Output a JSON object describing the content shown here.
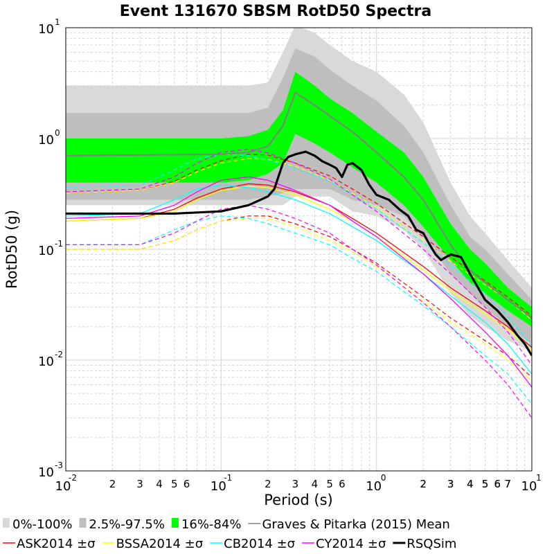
{
  "chart_data": {
    "type": "line",
    "title": "Event 131670 SBSM RotD50 Spectra",
    "xlabel": "Period (s)",
    "ylabel": "RotD50 (g)",
    "xscale": "log",
    "yscale": "log",
    "xlim": [
      0.01,
      10
    ],
    "ylim": [
      0.001,
      10
    ],
    "grid": true,
    "legend_position": "bottom",
    "x_major_ticks": [
      {
        "base": "10",
        "exp": "-2"
      },
      {
        "base": "10",
        "exp": "-1"
      },
      {
        "base": "10",
        "exp": "0"
      },
      {
        "base": "10",
        "exp": "1"
      }
    ],
    "y_major_ticks": [
      {
        "base": "10",
        "exp": "-3"
      },
      {
        "base": "10",
        "exp": "-2"
      },
      {
        "base": "10",
        "exp": "-1"
      },
      {
        "base": "10",
        "exp": "0"
      },
      {
        "base": "10",
        "exp": "1"
      }
    ],
    "x_minor_labels": [
      "2",
      "3",
      "4",
      "5",
      "6",
      "2",
      "3",
      "4",
      "5",
      "6",
      "2",
      "3",
      "4",
      "5",
      "6",
      "7",
      "2",
      "3",
      "4",
      "5",
      "6",
      "7"
    ],
    "x_minor_label_values": [
      0.02,
      0.03,
      0.04,
      0.05,
      0.06,
      0.2,
      0.3,
      0.4,
      0.5,
      0.6,
      2,
      3,
      4,
      5,
      6,
      7,
      2.0,
      3.0,
      4.0,
      5.0,
      6.0,
      7.0
    ],
    "bands_x": [
      0.01,
      0.1,
      0.15,
      0.2,
      0.25,
      0.3,
      0.4,
      0.5,
      0.7,
      1.0,
      1.5,
      2.0,
      3.0,
      4.0,
      5.0,
      7.0,
      10.0
    ],
    "bands": [
      {
        "name": "0%-100%",
        "color": "#d9d9d9",
        "lower": [
          0.25,
          0.25,
          0.25,
          0.25,
          0.25,
          0.3,
          0.3,
          0.3,
          0.22,
          0.2,
          0.15,
          0.1,
          0.04,
          0.025,
          0.02,
          0.015,
          0.012
        ],
        "upper": [
          3.0,
          3.0,
          3.0,
          3.2,
          6.0,
          10.5,
          9.0,
          7.0,
          5.0,
          4.0,
          2.5,
          1.4,
          0.4,
          0.2,
          0.14,
          0.08,
          0.045
        ]
      },
      {
        "name": "2.5%-97.5%",
        "color": "#bebebe",
        "lower": [
          0.28,
          0.28,
          0.28,
          0.3,
          0.32,
          0.35,
          0.35,
          0.35,
          0.28,
          0.25,
          0.2,
          0.13,
          0.06,
          0.04,
          0.03,
          0.02,
          0.014
        ],
        "upper": [
          1.7,
          1.7,
          1.7,
          1.9,
          3.5,
          6.5,
          5.5,
          4.2,
          3.0,
          2.2,
          1.3,
          0.75,
          0.25,
          0.13,
          0.1,
          0.06,
          0.035
        ]
      },
      {
        "name": "16%-84%",
        "color": "#00ff00",
        "lower": [
          0.4,
          0.4,
          0.42,
          0.48,
          0.6,
          1.1,
          0.9,
          0.75,
          0.55,
          0.4,
          0.25,
          0.16,
          0.08,
          0.05,
          0.04,
          0.028,
          0.02
        ],
        "upper": [
          1.0,
          1.0,
          1.05,
          1.2,
          1.8,
          4.0,
          3.0,
          2.3,
          1.7,
          1.15,
          0.75,
          0.45,
          0.17,
          0.1,
          0.075,
          0.045,
          0.03
        ]
      }
    ],
    "series": [
      {
        "name": "Graves & Pitarka (2015) Mean",
        "color": "#808080",
        "width": 2,
        "dash": "",
        "x": [
          0.01,
          0.1,
          0.15,
          0.2,
          0.25,
          0.3,
          0.4,
          0.5,
          0.7,
          1.0,
          1.5,
          2.0,
          3.0,
          4.0,
          5.0,
          7.0,
          10.0
        ],
        "y": [
          0.7,
          0.72,
          0.75,
          0.85,
          1.3,
          2.6,
          2.0,
          1.6,
          1.15,
          0.75,
          0.45,
          0.28,
          0.11,
          0.065,
          0.05,
          0.035,
          0.024
        ]
      },
      {
        "name": "ASK2014 ±σ",
        "color": "#ff0000",
        "width": 1.3,
        "dash": "",
        "x": [
          0.01,
          0.03,
          0.05,
          0.07,
          0.1,
          0.15,
          0.2,
          0.3,
          0.5,
          0.7,
          1.0,
          2.0,
          3.0,
          5.0,
          7.0,
          10.0
        ],
        "y": [
          0.18,
          0.19,
          0.23,
          0.29,
          0.35,
          0.39,
          0.38,
          0.33,
          0.25,
          0.19,
          0.14,
          0.07,
          0.045,
          0.028,
          0.02,
          0.013
        ],
        "upper": [
          0.32,
          0.34,
          0.41,
          0.52,
          0.63,
          0.72,
          0.71,
          0.6,
          0.46,
          0.35,
          0.26,
          0.13,
          0.085,
          0.052,
          0.037,
          0.025
        ],
        "lower": [
          0.1,
          0.1,
          0.12,
          0.15,
          0.18,
          0.2,
          0.2,
          0.17,
          0.13,
          0.1,
          0.075,
          0.037,
          0.024,
          0.015,
          0.011,
          0.007
        ]
      },
      {
        "name": "BSSA2014 ±σ",
        "color": "#ffff00",
        "width": 1.3,
        "dash": "",
        "x": [
          0.01,
          0.03,
          0.05,
          0.07,
          0.1,
          0.15,
          0.2,
          0.3,
          0.5,
          0.7,
          1.0,
          2.0,
          3.0,
          5.0,
          7.0,
          10.0
        ],
        "y": [
          0.18,
          0.19,
          0.22,
          0.28,
          0.34,
          0.37,
          0.36,
          0.31,
          0.23,
          0.18,
          0.13,
          0.065,
          0.042,
          0.026,
          0.019,
          0.012
        ],
        "upper": [
          0.32,
          0.34,
          0.4,
          0.5,
          0.6,
          0.66,
          0.65,
          0.56,
          0.42,
          0.32,
          0.24,
          0.12,
          0.078,
          0.048,
          0.035,
          0.023
        ],
        "lower": [
          0.1,
          0.1,
          0.12,
          0.15,
          0.18,
          0.19,
          0.19,
          0.16,
          0.12,
          0.095,
          0.07,
          0.034,
          0.022,
          0.014,
          0.01,
          0.0065
        ]
      },
      {
        "name": "CB2014 ±σ",
        "color": "#00ffff",
        "width": 1.3,
        "dash": "",
        "x": [
          0.01,
          0.03,
          0.05,
          0.07,
          0.1,
          0.15,
          0.2,
          0.3,
          0.5,
          0.7,
          1.0,
          2.0,
          3.0,
          5.0,
          7.0,
          10.0
        ],
        "y": [
          0.2,
          0.21,
          0.28,
          0.35,
          0.38,
          0.36,
          0.33,
          0.28,
          0.21,
          0.16,
          0.12,
          0.06,
          0.038,
          0.022,
          0.014,
          0.0075
        ],
        "upper": [
          0.36,
          0.38,
          0.52,
          0.66,
          0.72,
          0.7,
          0.64,
          0.54,
          0.41,
          0.31,
          0.23,
          0.115,
          0.072,
          0.04,
          0.025,
          0.0133
        ],
        "lower": [
          0.11,
          0.11,
          0.15,
          0.18,
          0.2,
          0.19,
          0.17,
          0.14,
          0.11,
          0.083,
          0.063,
          0.031,
          0.02,
          0.011,
          0.0075,
          0.004
        ]
      },
      {
        "name": "CY2014 ±σ",
        "color": "#ff00ff",
        "width": 1.3,
        "dash": "",
        "x": [
          0.01,
          0.03,
          0.05,
          0.07,
          0.1,
          0.15,
          0.2,
          0.3,
          0.5,
          0.7,
          1.0,
          2.0,
          3.0,
          5.0,
          7.0,
          10.0
        ],
        "y": [
          0.19,
          0.2,
          0.25,
          0.33,
          0.42,
          0.45,
          0.42,
          0.34,
          0.25,
          0.18,
          0.13,
          0.06,
          0.036,
          0.018,
          0.011,
          0.0057
        ],
        "upper": [
          0.33,
          0.35,
          0.45,
          0.6,
          0.75,
          0.8,
          0.74,
          0.6,
          0.43,
          0.31,
          0.22,
          0.1,
          0.06,
          0.03,
          0.018,
          0.009
        ],
        "lower": [
          0.11,
          0.11,
          0.14,
          0.18,
          0.23,
          0.25,
          0.23,
          0.19,
          0.14,
          0.1,
          0.072,
          0.033,
          0.02,
          0.01,
          0.006,
          0.003
        ]
      },
      {
        "name": "RSQSim",
        "color": "#000000",
        "width": 3.2,
        "dash": "",
        "x": [
          0.01,
          0.05,
          0.1,
          0.15,
          0.2,
          0.22,
          0.25,
          0.27,
          0.3,
          0.35,
          0.4,
          0.45,
          0.5,
          0.55,
          0.6,
          0.65,
          0.7,
          0.8,
          0.9,
          1.0,
          1.2,
          1.4,
          1.6,
          1.8,
          2.0,
          2.2,
          2.4,
          2.6,
          3.0,
          3.5,
          4.0,
          5.0,
          6.0,
          7.0,
          8.0,
          9.0,
          10.0
        ],
        "y": [
          0.21,
          0.21,
          0.22,
          0.25,
          0.3,
          0.35,
          0.6,
          0.68,
          0.72,
          0.76,
          0.7,
          0.62,
          0.58,
          0.54,
          0.45,
          0.58,
          0.6,
          0.52,
          0.38,
          0.31,
          0.28,
          0.23,
          0.2,
          0.15,
          0.14,
          0.11,
          0.09,
          0.08,
          0.09,
          0.085,
          0.06,
          0.035,
          0.028,
          0.022,
          0.017,
          0.014,
          0.011
        ]
      }
    ],
    "legend": [
      {
        "label": "0%-100%",
        "kind": "box",
        "color": "#d9d9d9"
      },
      {
        "label": "2.5%-97.5%",
        "kind": "box",
        "color": "#bebebe"
      },
      {
        "label": "16%-84%",
        "kind": "box",
        "color": "#00ff00"
      },
      {
        "label": "Graves & Pitarka (2015) Mean",
        "kind": "line",
        "color": "#808080"
      },
      {
        "label": "ASK2014 ±σ",
        "kind": "line",
        "color": "#ff0000"
      },
      {
        "label": "BSSA2014 ±σ",
        "kind": "line",
        "color": "#ffff00"
      },
      {
        "label": "CB2014 ±σ",
        "kind": "line",
        "color": "#00ffff"
      },
      {
        "label": "CY2014 ±σ",
        "kind": "line",
        "color": "#ff00ff"
      },
      {
        "label": "RSQSim",
        "kind": "line",
        "color": "#000000"
      }
    ]
  }
}
